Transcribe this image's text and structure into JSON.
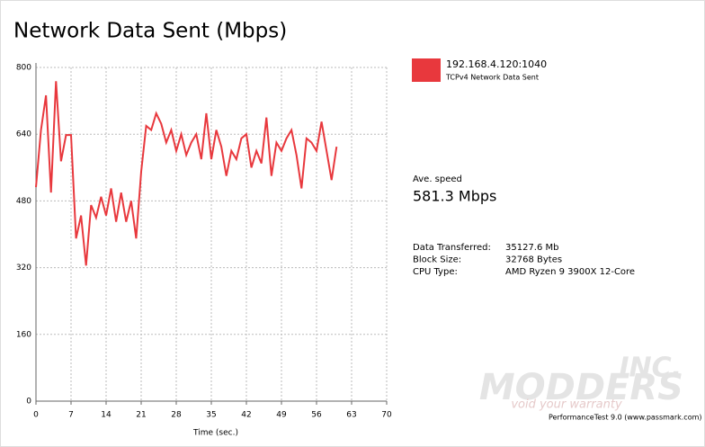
{
  "chart_data": {
    "type": "line",
    "title": "Network Data Sent (Mbps)",
    "x_label": "Time (sec.)",
    "x": [
      0,
      1,
      2,
      3,
      4,
      5,
      6,
      7,
      8,
      9,
      10,
      11,
      12,
      13,
      14,
      15,
      16,
      17,
      18,
      19,
      20,
      21,
      22,
      23,
      24,
      25,
      26,
      27,
      28,
      29,
      30,
      31,
      32,
      33,
      34,
      35,
      36,
      37,
      38,
      39,
      40,
      41,
      42,
      43,
      44,
      45,
      46,
      47,
      48,
      49,
      50,
      51,
      52,
      53,
      54,
      55,
      56,
      57,
      58,
      59,
      60
    ],
    "series": [
      {
        "name": "192.168.4.120:1040",
        "description": "TCPv4 Network Data Sent",
        "color": "#e8383d",
        "values": [
          513,
          650,
          733,
          500,
          767,
          575,
          638,
          638,
          390,
          445,
          325,
          470,
          440,
          490,
          445,
          510,
          430,
          500,
          430,
          480,
          390,
          550,
          660,
          650,
          690,
          665,
          620,
          650,
          600,
          640,
          590,
          620,
          640,
          580,
          690,
          580,
          650,
          610,
          540,
          600,
          580,
          630,
          640,
          560,
          600,
          570,
          680,
          540,
          620,
          600,
          630,
          650,
          590,
          510,
          630,
          620,
          600,
          670,
          600,
          530,
          610
        ]
      }
    ],
    "xlim": [
      0,
      70
    ],
    "xticks": [
      0,
      7,
      14,
      21,
      28,
      35,
      42,
      49,
      56,
      63,
      70
    ],
    "ylim": [
      0,
      800
    ],
    "yticks": [
      0,
      160,
      320,
      480,
      640,
      800
    ],
    "grid": true,
    "stats": {
      "avg_label": "Ave. speed",
      "avg_value": "581.3 Mbps",
      "rows": [
        [
          "Data Transferred:",
          "35127.6 Mb"
        ],
        [
          "Block Size:",
          "32768 Bytes"
        ],
        [
          "CPU Type:",
          "AMD Ryzen 9 3900X 12-Core"
        ]
      ]
    },
    "footer": "PerformanceTest 9.0 (www.passmark.com)",
    "watermark": [
      "MODDERS",
      "INC.",
      "void your warranty"
    ]
  }
}
